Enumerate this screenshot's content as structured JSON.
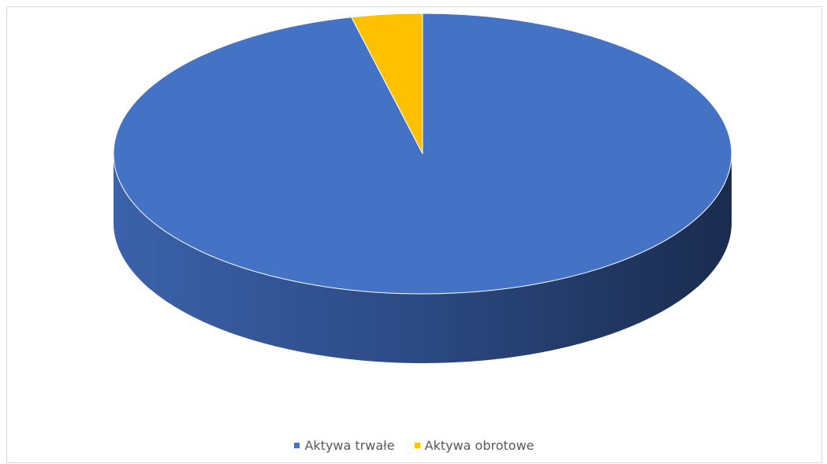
{
  "chart_data": {
    "type": "pie",
    "style": "3d",
    "slices": [
      {
        "label": "Aktywa trwałe",
        "value": 96.3,
        "color": "#4472C4"
      },
      {
        "label": "Aktywa obrotowe",
        "value": 3.7,
        "color": "#FFC000"
      }
    ],
    "legend_position": "bottom",
    "start_angle": "12 o'clock",
    "direction": "clockwise"
  }
}
